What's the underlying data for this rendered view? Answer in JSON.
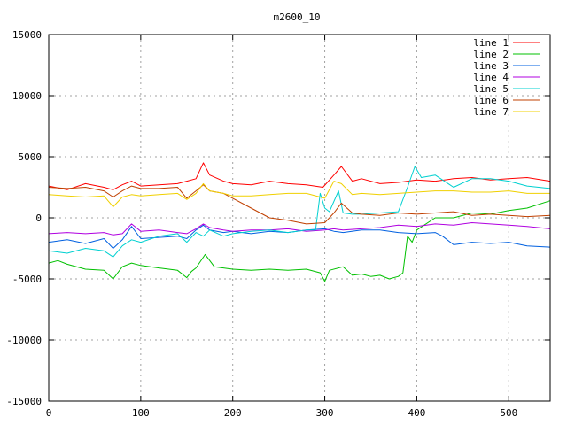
{
  "chart_data": {
    "type": "line",
    "title": "m2600_10",
    "xlabel": "",
    "ylabel": "",
    "xlim": [
      0,
      545
    ],
    "ylim": [
      -15000,
      15000
    ],
    "xticks": [
      0,
      100,
      200,
      300,
      400,
      500
    ],
    "yticks": [
      -15000,
      -10000,
      -5000,
      0,
      5000,
      10000,
      15000
    ],
    "grid": true,
    "legend_position": "top-right",
    "series": [
      {
        "name": "line 1",
        "color": "#ff0000",
        "x": [
          0,
          20,
          40,
          60,
          70,
          80,
          90,
          100,
          120,
          140,
          150,
          160,
          168,
          175,
          190,
          200,
          220,
          240,
          260,
          280,
          298,
          310,
          318,
          330,
          340,
          360,
          380,
          400,
          420,
          440,
          460,
          480,
          500,
          520,
          545
        ],
        "y": [
          2600,
          2300,
          2800,
          2500,
          2300,
          2700,
          3000,
          2600,
          2700,
          2800,
          3000,
          3200,
          4500,
          3500,
          3000,
          2800,
          2700,
          3000,
          2800,
          2700,
          2500,
          3500,
          4200,
          3000,
          3200,
          2800,
          2900,
          3100,
          3000,
          3200,
          3300,
          3100,
          3200,
          3300,
          3000
        ]
      },
      {
        "name": "line 2",
        "color": "#00c000",
        "x": [
          0,
          10,
          20,
          40,
          60,
          70,
          80,
          90,
          100,
          120,
          140,
          150,
          155,
          160,
          170,
          180,
          200,
          220,
          240,
          260,
          280,
          295,
          300,
          305,
          320,
          330,
          340,
          350,
          360,
          370,
          380,
          385,
          390,
          395,
          400,
          420,
          440,
          460,
          480,
          500,
          520,
          545
        ],
        "y": [
          -3700,
          -3500,
          -3800,
          -4200,
          -4300,
          -5000,
          -4000,
          -3700,
          -3900,
          -4100,
          -4300,
          -4900,
          -4400,
          -4100,
          -3000,
          -4000,
          -4200,
          -4300,
          -4200,
          -4300,
          -4200,
          -4500,
          -5200,
          -4300,
          -4000,
          -4700,
          -4600,
          -4800,
          -4700,
          -5000,
          -4800,
          -4500,
          -1500,
          -2000,
          -1000,
          0,
          0,
          400,
          300,
          600,
          800,
          1400
        ]
      },
      {
        "name": "line 3",
        "color": "#0060e0",
        "x": [
          0,
          20,
          40,
          60,
          70,
          80,
          90,
          100,
          120,
          140,
          150,
          160,
          168,
          175,
          190,
          200,
          220,
          240,
          260,
          280,
          300,
          310,
          320,
          340,
          360,
          380,
          400,
          420,
          428,
          440,
          460,
          480,
          500,
          520,
          545
        ],
        "y": [
          -2000,
          -1800,
          -2100,
          -1700,
          -2500,
          -1800,
          -700,
          -1700,
          -1600,
          -1500,
          -1700,
          -1000,
          -600,
          -1000,
          -1200,
          -1100,
          -1300,
          -1100,
          -1200,
          -1000,
          -900,
          -1100,
          -1200,
          -1000,
          -1000,
          -1200,
          -1300,
          -1200,
          -1500,
          -2200,
          -2000,
          -2100,
          -2000,
          -2300,
          -2400
        ]
      },
      {
        "name": "line 4",
        "color": "#b000e0",
        "x": [
          0,
          20,
          40,
          60,
          70,
          80,
          90,
          100,
          120,
          140,
          150,
          160,
          168,
          175,
          190,
          200,
          220,
          240,
          260,
          280,
          300,
          310,
          320,
          340,
          360,
          380,
          400,
          420,
          440,
          460,
          480,
          500,
          520,
          545
        ],
        "y": [
          -1300,
          -1200,
          -1300,
          -1200,
          -1400,
          -1300,
          -500,
          -1100,
          -1000,
          -1200,
          -1300,
          -900,
          -500,
          -800,
          -1000,
          -1100,
          -1000,
          -1000,
          -900,
          -1100,
          -1000,
          -900,
          -1000,
          -900,
          -800,
          -600,
          -700,
          -500,
          -600,
          -400,
          -500,
          -600,
          -700,
          -900
        ]
      },
      {
        "name": "line 5",
        "color": "#00d0d0",
        "x": [
          0,
          20,
          40,
          60,
          70,
          80,
          90,
          100,
          120,
          140,
          150,
          160,
          168,
          175,
          190,
          200,
          220,
          240,
          260,
          280,
          290,
          295,
          300,
          305,
          315,
          320,
          330,
          340,
          360,
          380,
          390,
          398,
          405,
          420,
          440,
          460,
          480,
          500,
          520,
          545
        ],
        "y": [
          -2700,
          -2900,
          -2500,
          -2700,
          -3200,
          -2300,
          -1800,
          -2000,
          -1500,
          -1300,
          -2000,
          -1200,
          -1500,
          -1000,
          -1500,
          -1300,
          -1100,
          -1000,
          -1200,
          -1000,
          -1000,
          2000,
          800,
          500,
          2200,
          400,
          300,
          300,
          400,
          500,
          2500,
          4200,
          3300,
          3500,
          2500,
          3200,
          3200,
          3000,
          2600,
          2400
        ]
      },
      {
        "name": "line 6",
        "color": "#c04000",
        "x": [
          0,
          20,
          40,
          60,
          70,
          80,
          90,
          100,
          120,
          140,
          150,
          160,
          168,
          175,
          190,
          200,
          220,
          240,
          260,
          280,
          300,
          310,
          318,
          330,
          340,
          360,
          380,
          400,
          420,
          440,
          460,
          480,
          500,
          520,
          545
        ],
        "y": [
          2500,
          2400,
          2500,
          2200,
          1700,
          2200,
          2600,
          2400,
          2400,
          2500,
          1600,
          2200,
          2700,
          2200,
          2000,
          1600,
          800,
          0,
          -200,
          -500,
          -400,
          400,
          1200,
          400,
          300,
          200,
          400,
          300,
          400,
          500,
          200,
          300,
          200,
          100,
          200
        ]
      },
      {
        "name": "line 7",
        "color": "#f0d000",
        "x": [
          0,
          20,
          40,
          60,
          70,
          80,
          90,
          100,
          120,
          140,
          150,
          160,
          168,
          175,
          190,
          200,
          220,
          240,
          260,
          280,
          300,
          310,
          318,
          330,
          340,
          360,
          380,
          400,
          420,
          440,
          460,
          480,
          500,
          520,
          545
        ],
        "y": [
          1900,
          1800,
          1700,
          1800,
          900,
          1700,
          1900,
          1800,
          1900,
          2000,
          1500,
          2000,
          2800,
          2200,
          2000,
          1800,
          1800,
          1900,
          2000,
          2000,
          1600,
          3000,
          2800,
          1900,
          2000,
          1900,
          2000,
          2100,
          2200,
          2200,
          2100,
          2100,
          2200,
          2000,
          2000
        ]
      }
    ]
  }
}
